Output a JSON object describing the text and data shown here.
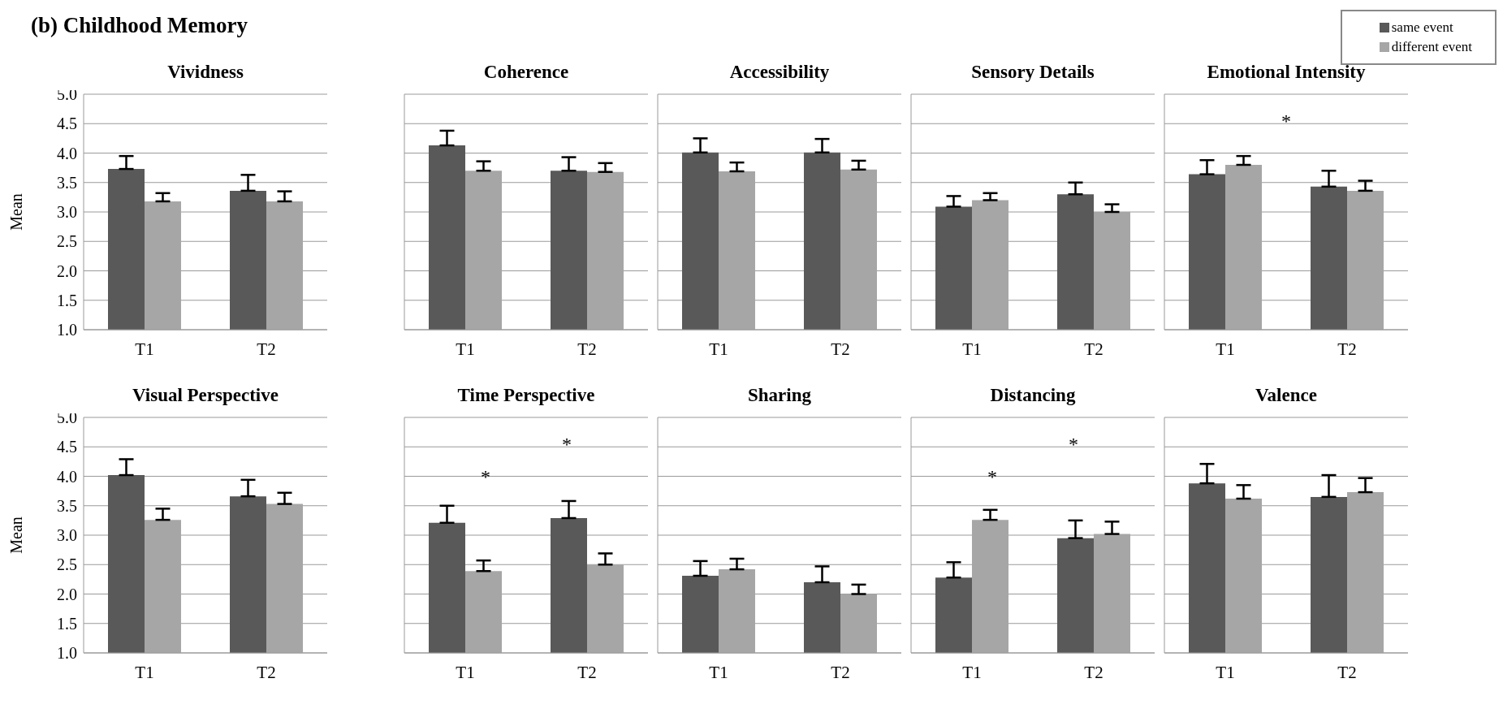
{
  "chart_data": [
    {
      "type": "other",
      "title": "(b) Childhood Memory"
    },
    {
      "type": "bar",
      "title": "Vividness",
      "ylabel": "Mean",
      "categories": [
        "T1",
        "T2"
      ],
      "ylim": [
        1,
        5
      ],
      "yticks": [
        {
          "value": 1,
          "label": "1.0"
        },
        {
          "value": 1.5,
          "label": "1.5"
        },
        {
          "value": 2,
          "label": "2.0"
        },
        {
          "value": 2.5,
          "label": "2.5"
        },
        {
          "value": 3,
          "label": "3.0"
        },
        {
          "value": 3.5,
          "label": "3.5"
        },
        {
          "value": 4,
          "label": "4.0"
        },
        {
          "value": 4.5,
          "label": "4.5"
        },
        {
          "value": 5,
          "label": "5.0"
        }
      ],
      "grid": "y",
      "series": [
        {
          "color": "#595959",
          "values": [
            3.73,
            3.36
          ],
          "errors": [
            [
              3.73,
              3.95
            ],
            [
              3.36,
              3.63
            ]
          ]
        },
        {
          "color": "#a6a6a6",
          "values": [
            3.18,
            3.18
          ],
          "errors": [
            [
              3.18,
              3.32
            ],
            [
              3.18,
              3.35
            ]
          ]
        }
      ]
    },
    {
      "type": "bar",
      "title": "Coherence",
      "categories": [
        "T1",
        "T2"
      ],
      "ylim": [
        1,
        5
      ],
      "yticks": [
        1,
        1.5,
        2,
        2.5,
        3,
        3.5,
        4,
        4.5,
        5
      ],
      "tick_labels": "x",
      "grid": "y",
      "series": [
        {
          "color": "#595959",
          "values": [
            4.13,
            3.7
          ],
          "errors": [
            [
              4.13,
              4.38
            ],
            [
              3.7,
              3.93
            ]
          ]
        },
        {
          "color": "#a6a6a6",
          "values": [
            3.7,
            3.68
          ],
          "errors": [
            [
              3.7,
              3.86
            ],
            [
              3.68,
              3.83
            ]
          ]
        }
      ]
    },
    {
      "type": "bar",
      "title": "Accessibility",
      "categories": [
        "T1",
        "T2"
      ],
      "ylim": [
        1,
        5
      ],
      "yticks": [
        1,
        1.5,
        2,
        2.5,
        3,
        3.5,
        4,
        4.5,
        5
      ],
      "tick_labels": "x",
      "grid": "y",
      "series": [
        {
          "color": "#595959",
          "values": [
            4.01,
            4.01
          ],
          "errors": [
            [
              4.01,
              4.25
            ],
            [
              4.01,
              4.24
            ]
          ]
        },
        {
          "color": "#a6a6a6",
          "values": [
            3.69,
            3.72
          ],
          "errors": [
            [
              3.69,
              3.84
            ],
            [
              3.72,
              3.87
            ]
          ]
        }
      ]
    },
    {
      "type": "bar",
      "title": "Sensory Details",
      "categories": [
        "T1",
        "T2"
      ],
      "ylim": [
        1,
        5
      ],
      "yticks": [
        1,
        1.5,
        2,
        2.5,
        3,
        3.5,
        4,
        4.5,
        5
      ],
      "tick_labels": "x",
      "grid": "y",
      "series": [
        {
          "color": "#595959",
          "values": [
            3.09,
            3.3
          ],
          "errors": [
            [
              3.09,
              3.27
            ],
            [
              3.3,
              3.5
            ]
          ]
        },
        {
          "color": "#a6a6a6",
          "values": [
            3.2,
            3.0
          ],
          "errors": [
            [
              3.2,
              3.32
            ],
            [
              3.0,
              3.13
            ]
          ]
        }
      ]
    },
    {
      "type": "bar",
      "title": "Emotional Intensity",
      "categories": [
        "T1",
        "T2"
      ],
      "ylim": [
        1,
        5
      ],
      "yticks": [
        1,
        1.5,
        2,
        2.5,
        3,
        3.5,
        4,
        4.5,
        5
      ],
      "tick_labels": "x",
      "grid": "y",
      "annotations": [
        "*"
      ],
      "legend": "top right",
      "series": [
        {
          "name": "same event",
          "color": "#595959",
          "values": [
            3.64,
            3.43
          ],
          "errors": [
            [
              3.64,
              3.88
            ],
            [
              3.43,
              3.7
            ]
          ]
        },
        {
          "name": "different event",
          "color": "#a6a6a6",
          "values": [
            3.8,
            3.36
          ],
          "errors": [
            [
              3.8,
              3.95
            ],
            [
              3.36,
              3.53
            ]
          ]
        }
      ]
    },
    {
      "type": "bar",
      "title": "Visual Perspective",
      "ylabel": "Mean",
      "categories": [
        "T1",
        "T2"
      ],
      "ylim": [
        1,
        5
      ],
      "yticks": [
        {
          "value": 1,
          "label": "1.0"
        },
        {
          "value": 1.5,
          "label": "1.5"
        },
        {
          "value": 2,
          "label": "2.0"
        },
        {
          "value": 2.5,
          "label": "2.5"
        },
        {
          "value": 3,
          "label": "3.0"
        },
        {
          "value": 3.5,
          "label": "3.5"
        },
        {
          "value": 4,
          "label": "4.0"
        },
        {
          "value": 4.5,
          "label": "4.5"
        },
        {
          "value": 5,
          "label": "5.0"
        }
      ],
      "grid": "y",
      "series": [
        {
          "color": "#595959",
          "values": [
            4.02,
            3.66
          ],
          "errors": [
            [
              4.02,
              4.29
            ],
            [
              3.66,
              3.94
            ]
          ]
        },
        {
          "color": "#a6a6a6",
          "values": [
            3.26,
            3.53
          ],
          "errors": [
            [
              3.26,
              3.45
            ],
            [
              3.53,
              3.72
            ]
          ]
        }
      ]
    },
    {
      "type": "bar",
      "title": "Time Perspective",
      "categories": [
        "T1",
        "T2"
      ],
      "ylim": [
        1,
        5
      ],
      "yticks": [
        1,
        1.5,
        2,
        2.5,
        3,
        3.5,
        4,
        4.5,
        5
      ],
      "tick_labels": "x",
      "grid": "y",
      "annotations": [
        "*",
        "*"
      ],
      "series": [
        {
          "color": "#595959",
          "values": [
            3.21,
            3.29
          ],
          "errors": [
            [
              3.21,
              3.5
            ],
            [
              3.29,
              3.58
            ]
          ]
        },
        {
          "color": "#a6a6a6",
          "values": [
            2.39,
            2.5
          ],
          "errors": [
            [
              2.39,
              2.57
            ],
            [
              2.5,
              2.69
            ]
          ]
        }
      ]
    },
    {
      "type": "bar",
      "title": "Sharing",
      "categories": [
        "T1",
        "T2"
      ],
      "ylim": [
        1,
        5
      ],
      "yticks": [
        1,
        1.5,
        2,
        2.5,
        3,
        3.5,
        4,
        4.5,
        5
      ],
      "tick_labels": "x",
      "grid": "y",
      "series": [
        {
          "color": "#595959",
          "values": [
            2.31,
            2.2
          ],
          "errors": [
            [
              2.31,
              2.56
            ],
            [
              2.2,
              2.47
            ]
          ]
        },
        {
          "color": "#a6a6a6",
          "values": [
            2.42,
            2.0
          ],
          "errors": [
            [
              2.42,
              2.6
            ],
            [
              2.0,
              2.16
            ]
          ]
        }
      ]
    },
    {
      "type": "bar",
      "title": "Distancing",
      "categories": [
        "T1",
        "T2"
      ],
      "ylim": [
        1,
        5
      ],
      "yticks": [
        1,
        1.5,
        2,
        2.5,
        3,
        3.5,
        4,
        4.5,
        5
      ],
      "tick_labels": "x",
      "grid": "y",
      "annotations": [
        "*",
        "*"
      ],
      "series": [
        {
          "color": "#595959",
          "values": [
            2.28,
            2.95
          ],
          "errors": [
            [
              2.28,
              2.54
            ],
            [
              2.95,
              3.25
            ]
          ]
        },
        {
          "color": "#a6a6a6",
          "values": [
            3.26,
            3.02
          ],
          "errors": [
            [
              3.26,
              3.43
            ],
            [
              3.02,
              3.23
            ]
          ]
        }
      ]
    },
    {
      "type": "bar",
      "title": "Valence",
      "categories": [
        "T1",
        "T2"
      ],
      "ylim": [
        1,
        5
      ],
      "yticks": [
        1,
        1.5,
        2,
        2.5,
        3,
        3.5,
        4,
        4.5,
        5
      ],
      "tick_labels": "x",
      "grid": "y",
      "series": [
        {
          "color": "#595959",
          "values": [
            3.88,
            3.65
          ],
          "errors": [
            [
              3.88,
              4.21
            ],
            [
              3.65,
              4.02
            ]
          ]
        },
        {
          "color": "#a6a6a6",
          "values": [
            3.62,
            3.73
          ],
          "errors": [
            [
              3.62,
              3.85
            ],
            [
              3.73,
              3.97
            ]
          ]
        }
      ]
    }
  ]
}
